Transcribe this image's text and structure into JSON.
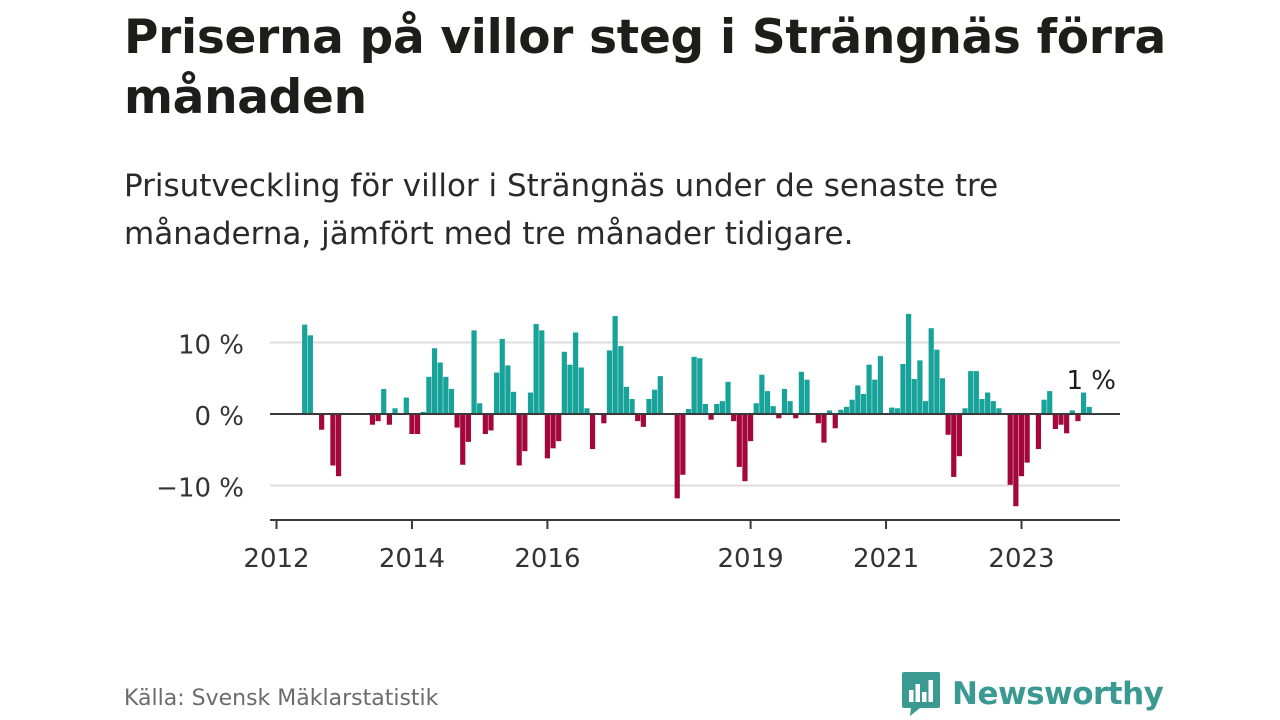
{
  "title": "Priserna på villor steg i Strängnäs förra månaden",
  "subtitle": "Prisutveckling för villor i Strängnäs under de senaste tre månaderna, jämfört med tre månader tidigare.",
  "source": "Källa: Svensk Mäklarstatistik",
  "brand": "Newsworthy",
  "colors": {
    "positive": "#17a399",
    "negative": "#a3073c",
    "brand": "#3a9a92"
  },
  "chart_data": {
    "type": "bar",
    "x_start": "2012-01",
    "x_step": "month",
    "ylabel": "",
    "ylim": [
      -15,
      15
    ],
    "yticks": [
      -10,
      0,
      10
    ],
    "ytick_labels": [
      "−10 %",
      "0 %",
      "10 %"
    ],
    "xticks": [
      {
        "label": "2012",
        "year": 2012
      },
      {
        "label": "2014",
        "year": 2014
      },
      {
        "label": "2016",
        "year": 2016
      },
      {
        "label": "2019",
        "year": 2019
      },
      {
        "label": "2021",
        "year": 2021
      },
      {
        "label": "2023",
        "year": 2023
      }
    ],
    "annotation": {
      "text": "1 %"
    },
    "values": [
      null,
      null,
      null,
      null,
      null,
      12.5,
      11,
      null,
      -2.2,
      null,
      -7.2,
      -8.7,
      null,
      null,
      null,
      null,
      null,
      -1.5,
      -1,
      3.5,
      -1.5,
      0.8,
      null,
      2.3,
      -2.8,
      -2.8,
      0.3,
      5.2,
      9.2,
      7.2,
      5.2,
      3.5,
      -1.9,
      -7.1,
      -3.9,
      11.7,
      1.5,
      -2.8,
      -2.3,
      5.8,
      10.5,
      6.8,
      3.1,
      -7.2,
      -5.2,
      3,
      12.6,
      11.7,
      -6.2,
      -4.8,
      -3.8,
      8.7,
      6.9,
      11.4,
      6.5,
      0.8,
      -4.9,
      null,
      -1.3,
      8.9,
      13.7,
      9.5,
      3.8,
      2.1,
      -1,
      -1.8,
      2.1,
      3.4,
      5.3,
      null,
      null,
      -11.8,
      -8.5,
      0.7,
      8,
      7.8,
      1.4,
      -0.8,
      1.4,
      1.8,
      4.5,
      -1,
      -7.4,
      -9.4,
      -3.8,
      1.5,
      5.5,
      3.2,
      1.1,
      -0.6,
      3.5,
      1.8,
      -0.6,
      5.9,
      4.8,
      null,
      -1.3,
      -4,
      0.5,
      -2,
      0.6,
      1,
      2,
      4,
      2.8,
      6.9,
      4.8,
      8.1,
      null,
      0.9,
      0.8,
      7,
      14,
      4.9,
      7.5,
      1.8,
      12,
      9,
      5,
      -2.9,
      -8.8,
      -5.9,
      0.8,
      6,
      6,
      2.1,
      3,
      1.8,
      0.8,
      null,
      -9.9,
      -12.9,
      -8.7,
      -6.8,
      null,
      -4.9,
      2,
      3.2,
      -2.1,
      -1.5,
      -2.7,
      0.5,
      -1,
      3,
      1
    ]
  }
}
